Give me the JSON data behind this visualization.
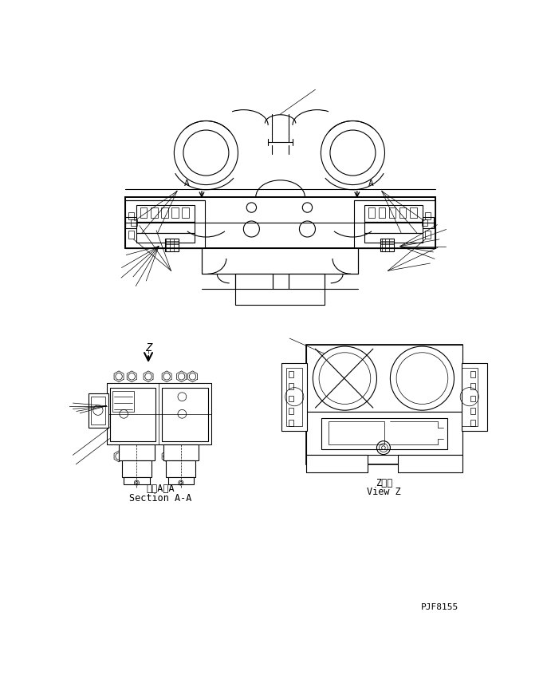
{
  "bg_color": "#ffffff",
  "line_color": "#000000",
  "lw_thick": 1.2,
  "lw_med": 0.8,
  "lw_thin": 0.5,
  "title_code": "PJF8155",
  "section_aa_label_jp": "断面A－A",
  "section_aa_label_en": "Section A-A",
  "view_z_label_jp": "Z　視",
  "view_z_label_en": "View Z"
}
